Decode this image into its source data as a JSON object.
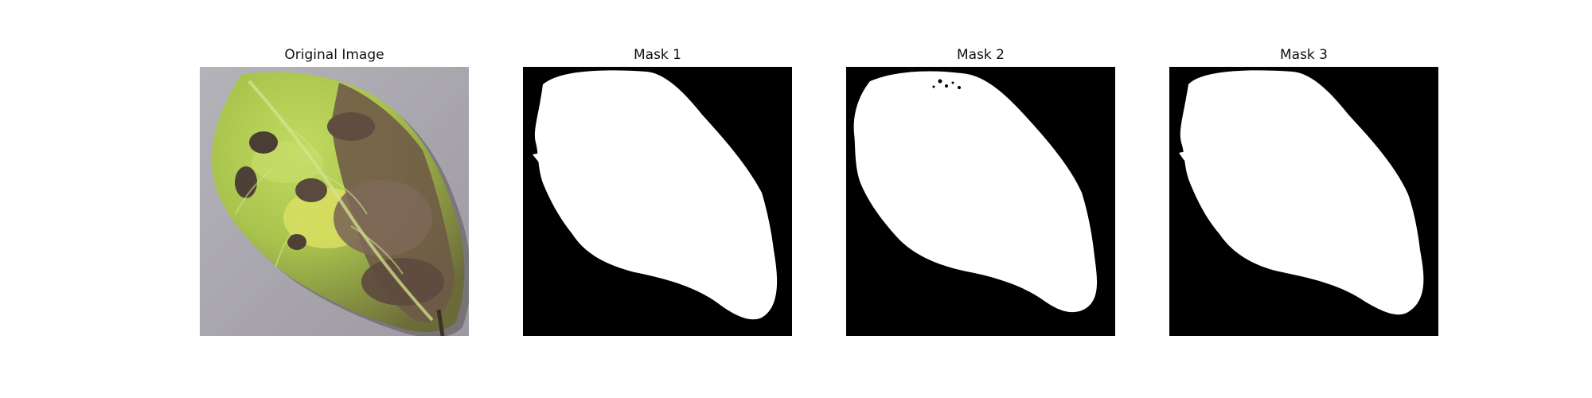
{
  "figure": {
    "panels": [
      {
        "title": "Original Image",
        "kind": "photo",
        "subject": "leaf-photo"
      },
      {
        "title": "Mask 1",
        "kind": "binary-mask",
        "foreground": "#ffffff",
        "background": "#000000"
      },
      {
        "title": "Mask 2",
        "kind": "binary-mask",
        "foreground": "#ffffff",
        "background": "#000000"
      },
      {
        "title": "Mask 3",
        "kind": "binary-mask",
        "foreground": "#ffffff",
        "background": "#000000"
      }
    ]
  },
  "colors": {
    "photo_background": "#a9a6ad",
    "leaf_green": "#a7c346",
    "leaf_yellow": "#d8de5a",
    "leaf_brown": "#6d5947",
    "leaf_dark": "#3e3128",
    "mask_white": "#ffffff",
    "mask_black": "#000000"
  }
}
